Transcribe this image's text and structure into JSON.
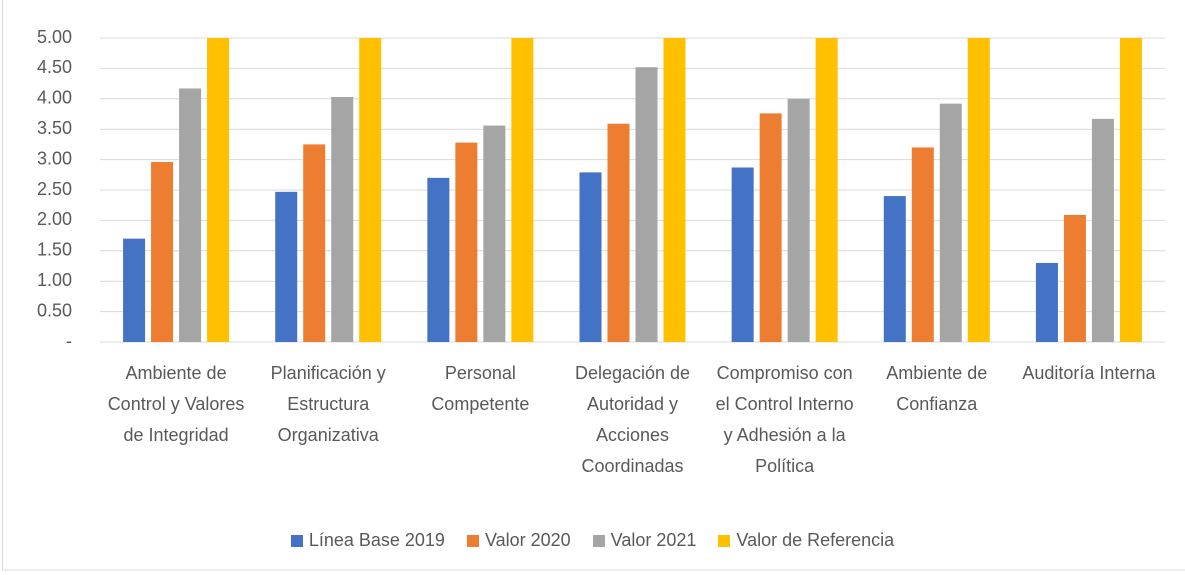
{
  "chart_data": {
    "type": "bar",
    "categories": [
      "Ambiente de Control y Valores de Integridad",
      "Planificación y Estructura Organizativa",
      "Personal Competente",
      "Delegación de Autoridad y Acciones Coordinadas",
      "Compromiso con el Control Interno y Adhesión a la Política",
      "Ambiente de Confianza",
      "Auditoría Interna"
    ],
    "series": [
      {
        "name": "Línea Base 2019",
        "color": "#4472c4",
        "values": [
          1.7,
          2.47,
          2.7,
          2.79,
          2.87,
          2.4,
          1.3
        ]
      },
      {
        "name": "Valor 2020",
        "color": "#ed7d31",
        "values": [
          2.96,
          3.25,
          3.28,
          3.59,
          3.76,
          3.2,
          2.09
        ]
      },
      {
        "name": "Valor 2021",
        "color": "#a5a5a5",
        "values": [
          4.17,
          4.03,
          3.56,
          4.52,
          4.0,
          3.92,
          3.67
        ]
      },
      {
        "name": "Valor de Referencia",
        "color": "#ffc000",
        "values": [
          5,
          5,
          5,
          5,
          5,
          5,
          5
        ]
      }
    ],
    "ylim": [
      0,
      5
    ],
    "yticks": [
      {
        "value": 0,
        "label": "-"
      },
      {
        "value": 0.5,
        "label": "0.50"
      },
      {
        "value": 1,
        "label": "1.00"
      },
      {
        "value": 1.5,
        "label": "1.50"
      },
      {
        "value": 2,
        "label": "2.00"
      },
      {
        "value": 2.5,
        "label": "2.50"
      },
      {
        "value": 3,
        "label": "3.00"
      },
      {
        "value": 3.5,
        "label": "3.50"
      },
      {
        "value": 4,
        "label": "4.00"
      },
      {
        "value": 4.5,
        "label": "4.50"
      },
      {
        "value": 5,
        "label": "5.00"
      }
    ],
    "grid": true,
    "legend": "bottom"
  }
}
